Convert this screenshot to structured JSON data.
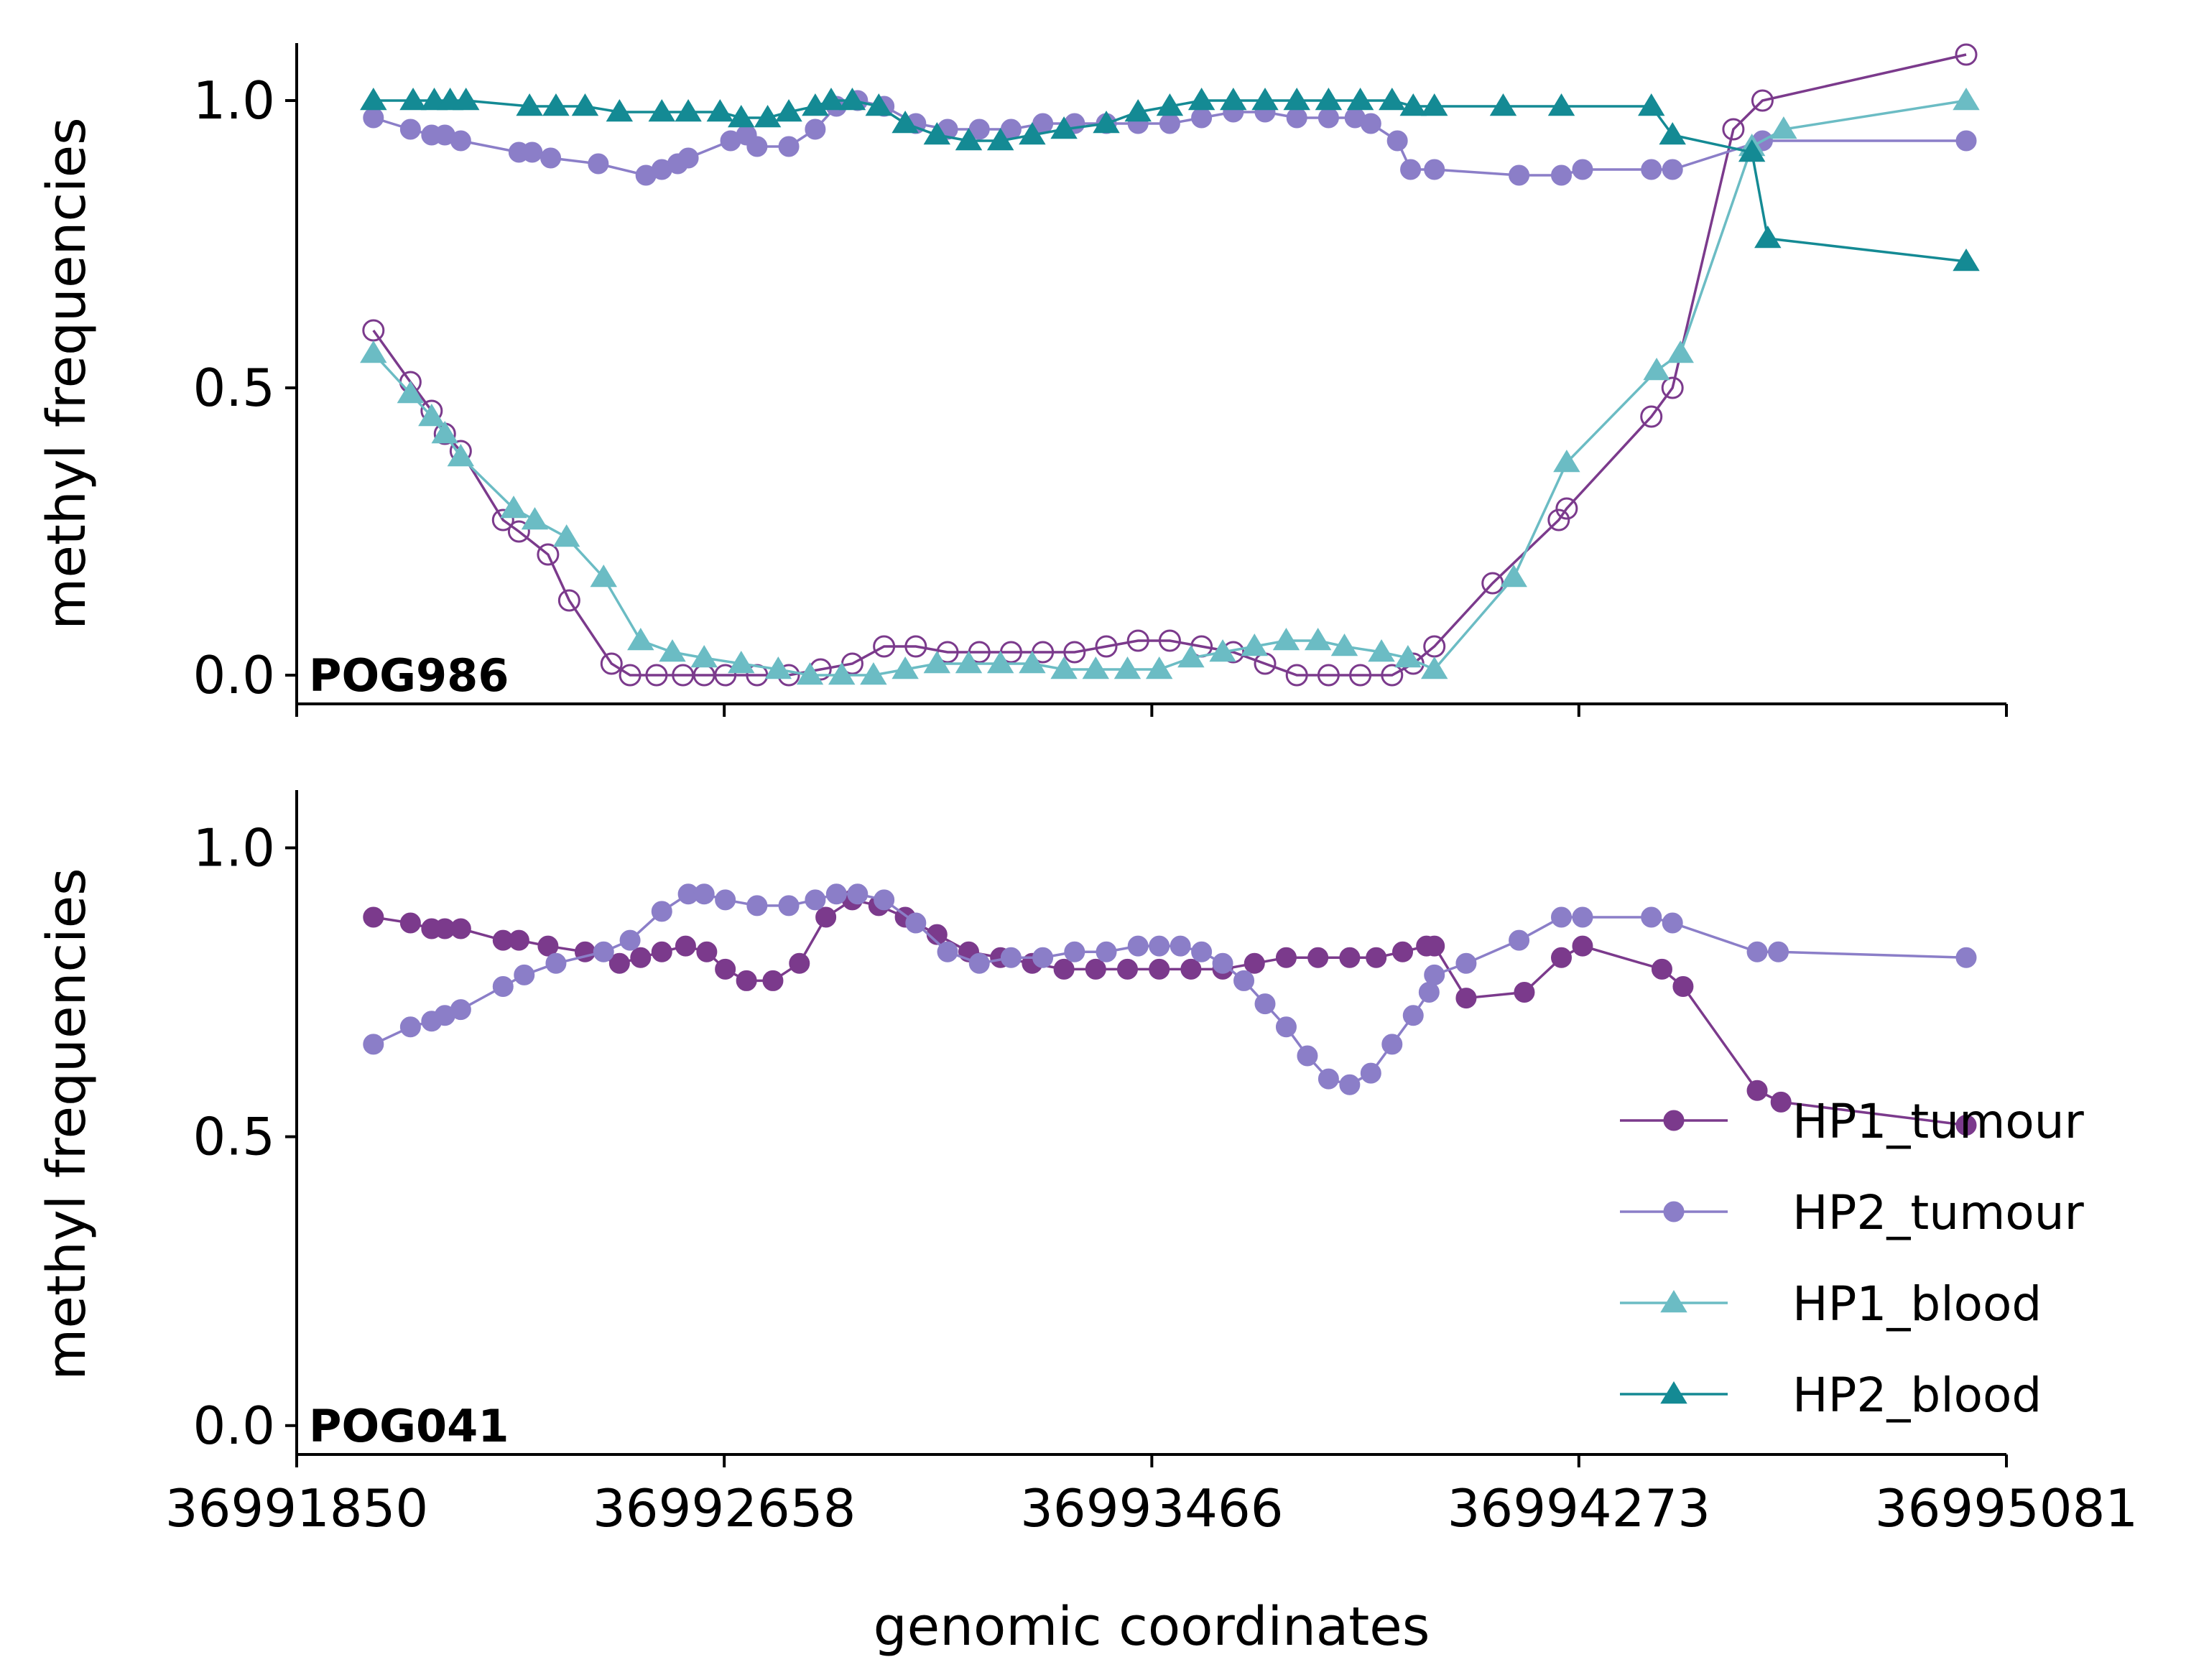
{
  "chart_data": [
    {
      "type": "line",
      "panel_label": "POG986",
      "ylabel": "methyl frequencies",
      "xlabel": "",
      "xlim": [
        36991850,
        36995081
      ],
      "ylim": [
        -0.05,
        1.1
      ],
      "yticks": [
        0.0,
        0.5,
        1.0
      ],
      "ytick_labels": [
        "0.0",
        "0.5",
        "1.0"
      ],
      "xticks": [
        36991850,
        36992658,
        36993466,
        36994273,
        36995081
      ],
      "xtick_labels": [],
      "series": [
        {
          "name": "HP1_tumour",
          "color": "#7b3a8c",
          "marker": "circle-open",
          "x": [
            36991995,
            36992065,
            36992105,
            36992130,
            36992160,
            36992240,
            36992270,
            36992325,
            36992365,
            36992445,
            36992480,
            36992530,
            36992580,
            36992620,
            36992660,
            36992720,
            36992780,
            36992840,
            36992900,
            36992960,
            36993020,
            36993080,
            36993140,
            36993200,
            36993260,
            36993320,
            36993380,
            36993440,
            36993500,
            36993560,
            36993620,
            36993680,
            36993740,
            36993800,
            36993860,
            36993920,
            36993960,
            36994000,
            36994110,
            36994235,
            36994250,
            36994410,
            36994450,
            36994565,
            36994620,
            36995005
          ],
          "y": [
            0.6,
            0.51,
            0.46,
            0.42,
            0.39,
            0.27,
            0.25,
            0.21,
            0.13,
            0.02,
            0.0,
            0.0,
            0.0,
            0.0,
            0.0,
            0.0,
            0.0,
            0.01,
            0.02,
            0.05,
            0.05,
            0.04,
            0.04,
            0.04,
            0.04,
            0.04,
            0.05,
            0.06,
            0.06,
            0.05,
            0.04,
            0.02,
            0.0,
            0.0,
            0.0,
            0.0,
            0.02,
            0.05,
            0.16,
            0.27,
            0.29,
            0.45,
            0.5,
            0.95,
            1.0,
            1.08
          ]
        },
        {
          "name": "HP2_tumour",
          "color": "#8b7ec8",
          "marker": "circle",
          "x": [
            36991995,
            36992065,
            36992105,
            36992130,
            36992160,
            36992270,
            36992295,
            36992330,
            36992420,
            36992510,
            36992540,
            36992570,
            36992590,
            36992670,
            36992700,
            36992720,
            36992780,
            36992830,
            36992870,
            36992910,
            36992960,
            36993020,
            36993080,
            36993140,
            36993200,
            36993260,
            36993320,
            36993380,
            36993440,
            36993500,
            36993560,
            36993620,
            36993680,
            36993740,
            36993800,
            36993850,
            36993880,
            36993930,
            36993955,
            36994000,
            36994160,
            36994240,
            36994280,
            36994410,
            36994450,
            36994620,
            36995005
          ],
          "y": [
            0.97,
            0.95,
            0.94,
            0.94,
            0.93,
            0.91,
            0.91,
            0.9,
            0.89,
            0.87,
            0.88,
            0.89,
            0.9,
            0.93,
            0.94,
            0.92,
            0.92,
            0.95,
            0.99,
            1.0,
            0.99,
            0.96,
            0.95,
            0.95,
            0.95,
            0.96,
            0.96,
            0.96,
            0.96,
            0.96,
            0.97,
            0.98,
            0.98,
            0.97,
            0.97,
            0.97,
            0.96,
            0.93,
            0.88,
            0.88,
            0.87,
            0.87,
            0.88,
            0.88,
            0.88,
            0.93,
            0.93
          ]
        },
        {
          "name": "HP1_blood",
          "color": "#6bbcc4",
          "marker": "triangle",
          "x": [
            36991995,
            36992065,
            36992105,
            36992130,
            36992160,
            36992260,
            36992300,
            36992360,
            36992430,
            36992500,
            36992560,
            36992620,
            36992690,
            36992760,
            36992820,
            36992880,
            36992940,
            36993000,
            36993060,
            36993120,
            36993180,
            36993240,
            36993300,
            36993360,
            36993420,
            36993480,
            36993540,
            36993600,
            36993660,
            36993720,
            36993780,
            36993830,
            36993900,
            36993950,
            36994000,
            36994150,
            36994250,
            36994420,
            36994465,
            36994600,
            36994660,
            36995005
          ],
          "y": [
            0.56,
            0.49,
            0.45,
            0.42,
            0.38,
            0.29,
            0.27,
            0.24,
            0.17,
            0.06,
            0.04,
            0.03,
            0.02,
            0.01,
            0.0,
            0.0,
            0.0,
            0.01,
            0.02,
            0.02,
            0.02,
            0.02,
            0.01,
            0.01,
            0.01,
            0.01,
            0.03,
            0.04,
            0.05,
            0.06,
            0.06,
            0.05,
            0.04,
            0.03,
            0.01,
            0.17,
            0.37,
            0.53,
            0.56,
            0.92,
            0.95,
            1.0
          ]
        },
        {
          "name": "HP2_blood",
          "color": "#148a94",
          "marker": "triangle",
          "x": [
            36991995,
            36992070,
            36992110,
            36992140,
            36992170,
            36992290,
            36992340,
            36992395,
            36992460,
            36992540,
            36992590,
            36992650,
            36992690,
            36992740,
            36992780,
            36992830,
            36992860,
            36992900,
            36992950,
            36993000,
            36993060,
            36993120,
            36993180,
            36993240,
            36993300,
            36993380,
            36993440,
            36993500,
            36993560,
            36993620,
            36993680,
            36993740,
            36993800,
            36993860,
            36993920,
            36993960,
            36994000,
            36994130,
            36994240,
            36994410,
            36994450,
            36994600,
            36994630,
            36995005
          ],
          "y": [
            1.0,
            1.0,
            1.0,
            1.0,
            1.0,
            0.99,
            0.99,
            0.99,
            0.98,
            0.98,
            0.98,
            0.98,
            0.97,
            0.97,
            0.98,
            0.99,
            1.0,
            1.0,
            0.99,
            0.96,
            0.94,
            0.93,
            0.93,
            0.94,
            0.95,
            0.96,
            0.98,
            0.99,
            1.0,
            1.0,
            1.0,
            1.0,
            1.0,
            1.0,
            1.0,
            0.99,
            0.99,
            0.99,
            0.99,
            0.99,
            0.94,
            0.91,
            0.76,
            0.72
          ]
        }
      ]
    },
    {
      "type": "line",
      "panel_label": "POG041",
      "ylabel": "methyl frequencies",
      "xlabel": "genomic coordinates",
      "xlim": [
        36991850,
        36995081
      ],
      "ylim": [
        -0.05,
        1.1
      ],
      "yticks": [
        0.0,
        0.5,
        1.0
      ],
      "ytick_labels": [
        "0.0",
        "0.5",
        "1.0"
      ],
      "xticks": [
        36991850,
        36992658,
        36993466,
        36994273,
        36995081
      ],
      "xtick_labels": [
        "36991850",
        "36992658",
        "36993466",
        "36994273",
        "36995081"
      ],
      "series": [
        {
          "name": "HP1_tumour",
          "color": "#7b3a8c",
          "marker": "circle",
          "x": [
            36991995,
            36992065,
            36992105,
            36992130,
            36992160,
            36992240,
            36992270,
            36992325,
            36992395,
            36992460,
            36992500,
            36992540,
            36992585,
            36992625,
            36992660,
            36992700,
            36992750,
            36992800,
            36992850,
            36992900,
            36992950,
            36993000,
            36993060,
            36993120,
            36993180,
            36993240,
            36993300,
            36993360,
            36993420,
            36993480,
            36993540,
            36993600,
            36993660,
            36993720,
            36993780,
            36993840,
            36993890,
            36993940,
            36993985,
            36994000,
            36994060,
            36994170,
            36994240,
            36994280,
            36994430,
            36994470,
            36994610,
            36994655,
            36995005
          ],
          "y": [
            0.88,
            0.87,
            0.86,
            0.86,
            0.86,
            0.84,
            0.84,
            0.83,
            0.82,
            0.8,
            0.81,
            0.82,
            0.83,
            0.82,
            0.79,
            0.77,
            0.77,
            0.8,
            0.88,
            0.91,
            0.9,
            0.88,
            0.85,
            0.82,
            0.81,
            0.8,
            0.79,
            0.79,
            0.79,
            0.79,
            0.79,
            0.79,
            0.8,
            0.81,
            0.81,
            0.81,
            0.81,
            0.82,
            0.83,
            0.83,
            0.74,
            0.75,
            0.81,
            0.83,
            0.79,
            0.76,
            0.58,
            0.56,
            0.52
          ]
        },
        {
          "name": "HP2_tumour",
          "color": "#8b7ec8",
          "marker": "circle",
          "x": [
            36991995,
            36992065,
            36992105,
            36992130,
            36992160,
            36992240,
            36992280,
            36992340,
            36992430,
            36992480,
            36992540,
            36992590,
            36992620,
            36992660,
            36992720,
            36992780,
            36992830,
            36992870,
            36992910,
            36992960,
            36993020,
            36993080,
            36993140,
            36993200,
            36993260,
            36993320,
            36993380,
            36993440,
            36993480,
            36993520,
            36993560,
            36993600,
            36993640,
            36993680,
            36993720,
            36993760,
            36993800,
            36993840,
            36993880,
            36993920,
            36993960,
            36993990,
            36994000,
            36994060,
            36994160,
            36994240,
            36994280,
            36994410,
            36994450,
            36994610,
            36994650,
            36995005
          ],
          "y": [
            0.66,
            0.69,
            0.7,
            0.71,
            0.72,
            0.76,
            0.78,
            0.8,
            0.82,
            0.84,
            0.89,
            0.92,
            0.92,
            0.91,
            0.9,
            0.9,
            0.91,
            0.92,
            0.92,
            0.91,
            0.87,
            0.82,
            0.8,
            0.81,
            0.81,
            0.82,
            0.82,
            0.83,
            0.83,
            0.83,
            0.82,
            0.8,
            0.77,
            0.73,
            0.69,
            0.64,
            0.6,
            0.59,
            0.61,
            0.66,
            0.71,
            0.75,
            0.78,
            0.8,
            0.84,
            0.88,
            0.88,
            0.88,
            0.87,
            0.82,
            0.82,
            0.81
          ]
        }
      ]
    }
  ],
  "legend": {
    "position": "lower-right",
    "entries": [
      {
        "label": "HP1_tumour",
        "color": "#7b3a8c",
        "marker": "circle"
      },
      {
        "label": "HP2_tumour",
        "color": "#8b7ec8",
        "marker": "circle"
      },
      {
        "label": "HP1_blood",
        "color": "#6bbcc4",
        "marker": "triangle"
      },
      {
        "label": "HP2_blood",
        "color": "#148a94",
        "marker": "triangle"
      }
    ]
  }
}
